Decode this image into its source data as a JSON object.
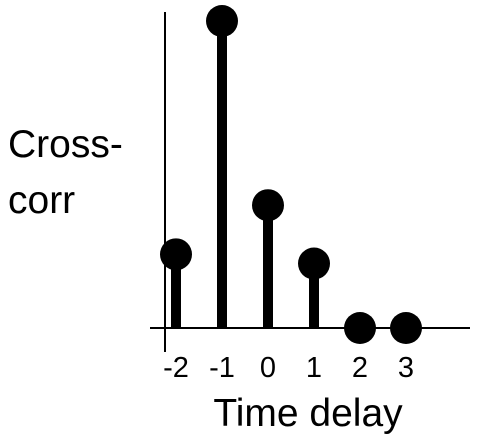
{
  "chart_data": {
    "type": "stem",
    "title": "",
    "xlabel": "Time delay",
    "ylabel_lines": [
      "Cross-",
      "corr"
    ],
    "x": [
      -2,
      -1,
      0,
      1,
      2,
      3
    ],
    "tick_labels": [
      "-2",
      "-1",
      "0",
      "1",
      "2",
      "3"
    ],
    "y": [
      0.24,
      1.0,
      0.4,
      0.21,
      0.0,
      0.0
    ],
    "ylim": [
      0,
      1
    ],
    "grid": false,
    "colors": {
      "stem": "#000000"
    }
  }
}
